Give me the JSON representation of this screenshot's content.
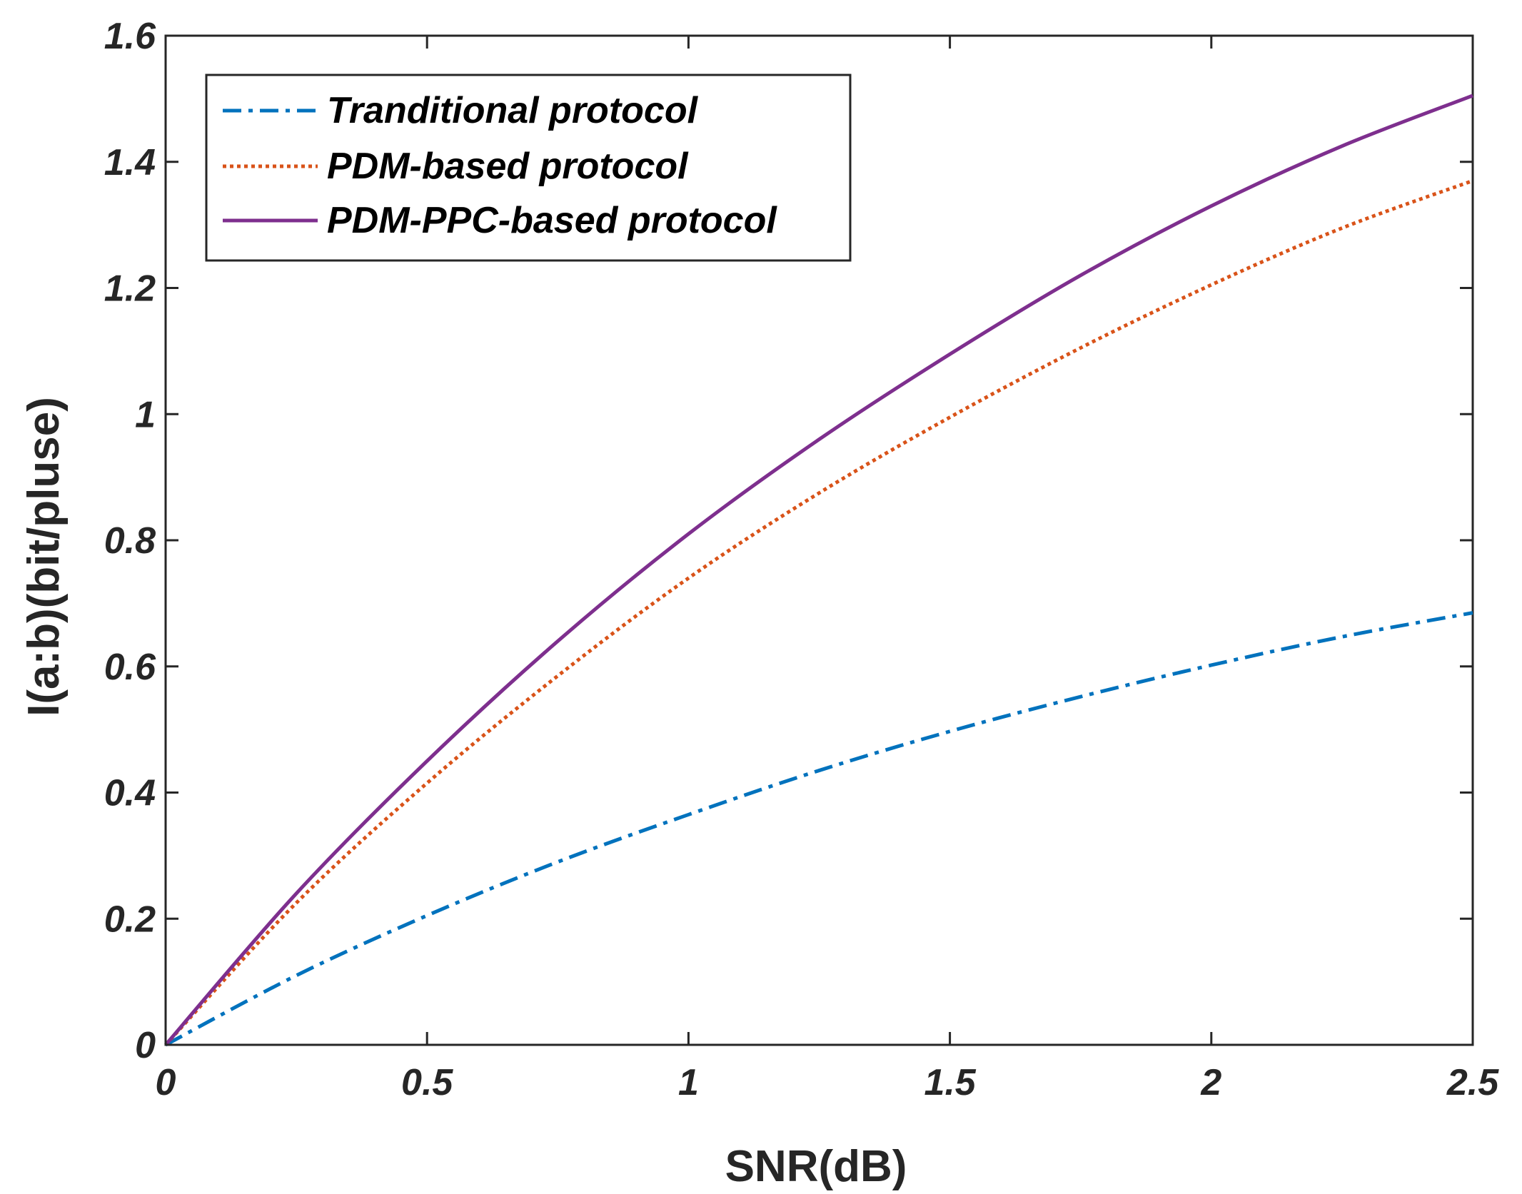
{
  "chart_data": {
    "type": "line",
    "title": "",
    "xlabel": "SNR(dB)",
    "ylabel": "I(a:b)(bit/pluse)",
    "xlim": [
      0,
      2.5
    ],
    "ylim": [
      0,
      1.6
    ],
    "xticks": [
      0,
      0.5,
      1,
      1.5,
      2,
      2.5
    ],
    "yticks": [
      0,
      0.2,
      0.4,
      0.6,
      0.8,
      1,
      1.2,
      1.4,
      1.6
    ],
    "xtick_labels": [
      "0",
      "0.5",
      "1",
      "1.5",
      "2",
      "2.5"
    ],
    "ytick_labels": [
      "0",
      "0.2",
      "0.4",
      "0.6",
      "0.8",
      "1",
      "1.2",
      "1.4",
      "1.6"
    ],
    "grid": false,
    "legend_position": "top-left",
    "x": [
      0,
      0.25,
      0.5,
      0.75,
      1.0,
      1.25,
      1.5,
      1.75,
      2.0,
      2.25,
      2.5
    ],
    "series": [
      {
        "name": "Tranditional protocol",
        "style": "dash-dot",
        "color": "#0072BD",
        "values": [
          0,
          0.11,
          0.205,
          0.29,
          0.365,
          0.435,
          0.497,
          0.552,
          0.602,
          0.647,
          0.685
        ]
      },
      {
        "name": "PDM-based protocol",
        "style": "dotted",
        "color": "#D95319",
        "values": [
          0,
          0.225,
          0.415,
          0.585,
          0.74,
          0.875,
          0.995,
          1.105,
          1.205,
          1.295,
          1.37
        ]
      },
      {
        "name": "PDM-PPC-based protocol",
        "style": "solid",
        "color": "#7E2F8E",
        "values": [
          0,
          0.24,
          0.45,
          0.64,
          0.81,
          0.96,
          1.095,
          1.22,
          1.33,
          1.425,
          1.505
        ]
      }
    ]
  }
}
